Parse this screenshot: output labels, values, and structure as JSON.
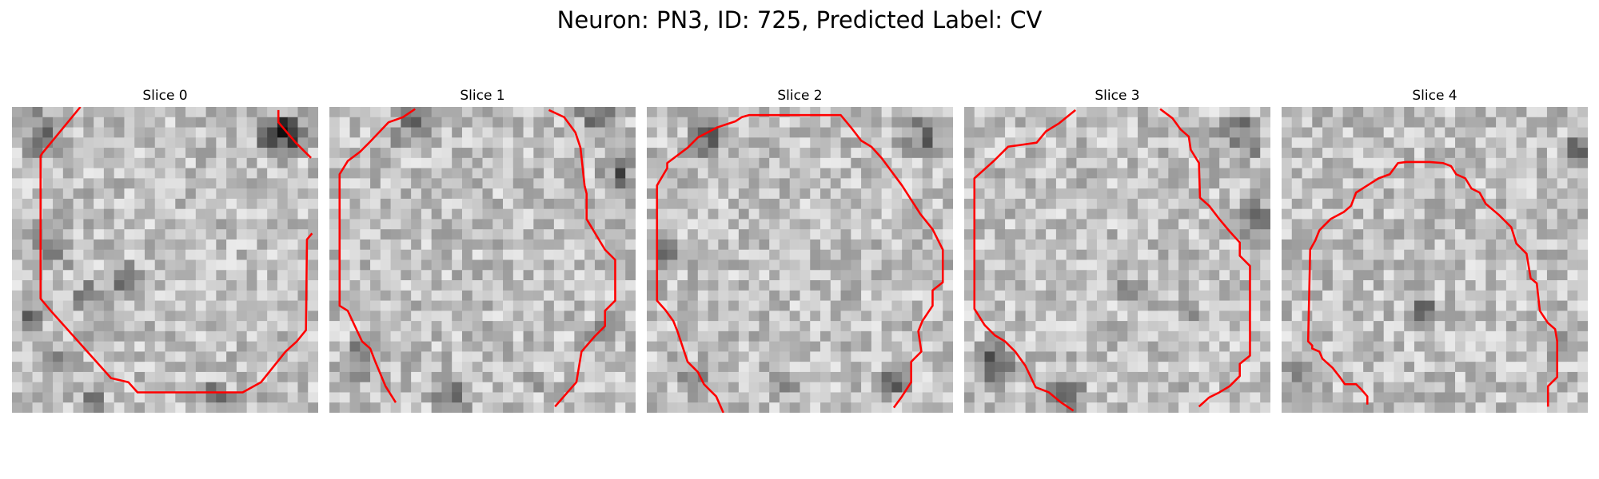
{
  "figure": {
    "title": "Neuron: PN3, ID: 725, Predicted Label: CV"
  },
  "contour_color": "#ff0000",
  "grid_size": 30,
  "slices": [
    {
      "title": "Slice 0",
      "seed": 11,
      "contour": [
        [
          6.7,
          0
        ],
        [
          3,
          4.5
        ],
        [
          2.8,
          4.8
        ],
        [
          2.8,
          18.8
        ],
        [
          3.8,
          20
        ],
        [
          9.7,
          26.6
        ],
        [
          11.4,
          27
        ],
        [
          12.3,
          28
        ],
        [
          22.6,
          28
        ],
        [
          24.4,
          27
        ],
        [
          26.8,
          24
        ],
        [
          27.9,
          23
        ],
        [
          28.8,
          21.9
        ],
        [
          28.9,
          13
        ],
        [
          29.4,
          12.4
        ]
      ],
      "contour2": [
        [
          26.1,
          0.3
        ],
        [
          26.1,
          1.5
        ],
        [
          27.8,
          3.5
        ],
        [
          29.3,
          5
        ]
      ],
      "dark_features": [
        [
          3,
          2.7,
          3.2
        ],
        [
          27,
          2.5,
          3
        ],
        [
          26,
          3,
          2.8
        ],
        [
          11,
          17,
          2.2
        ],
        [
          7.6,
          18.7,
          1.8
        ],
        [
          4,
          14,
          2.5
        ],
        [
          2,
          20,
          2
        ],
        [
          4,
          25,
          2
        ],
        [
          20,
          28.5,
          2
        ],
        [
          8,
          29,
          1.5
        ]
      ]
    },
    {
      "title": "Slice 1",
      "seed": 23,
      "contour": [
        [
          8.4,
          0.2
        ],
        [
          7.2,
          1
        ],
        [
          5.8,
          1.5
        ],
        [
          4,
          3.4
        ],
        [
          3,
          4.4
        ],
        [
          1.8,
          5.3
        ],
        [
          1,
          6.6
        ],
        [
          1,
          19.5
        ],
        [
          1.8,
          20
        ],
        [
          2.5,
          21.5
        ],
        [
          3.2,
          23
        ],
        [
          4,
          23.7
        ],
        [
          4.5,
          25
        ],
        [
          5.5,
          27.4
        ],
        [
          6.5,
          29
        ]
      ],
      "contour2": [
        [
          21.5,
          0.3
        ],
        [
          23,
          1
        ],
        [
          24.1,
          2.5
        ],
        [
          24.6,
          4
        ],
        [
          25,
          7.7
        ],
        [
          25.2,
          8.5
        ],
        [
          25.2,
          11
        ],
        [
          27,
          14
        ],
        [
          28,
          15
        ],
        [
          28,
          19
        ],
        [
          27,
          20
        ],
        [
          27,
          21.5
        ],
        [
          26,
          22.5
        ],
        [
          24.7,
          24
        ],
        [
          24.2,
          27
        ],
        [
          22.1,
          29.4
        ]
      ],
      "dark_features": [
        [
          8,
          2,
          2.5
        ],
        [
          26,
          0.5,
          2.5
        ],
        [
          28.5,
          7,
          2.5
        ],
        [
          3,
          25,
          2.5
        ],
        [
          12,
          28,
          2.5
        ],
        [
          20,
          27,
          1.5
        ],
        [
          27,
          22,
          2
        ]
      ]
    },
    {
      "title": "Slice 2",
      "seed": 37,
      "contour": [
        [
          7.5,
          30
        ],
        [
          6.8,
          28.4
        ],
        [
          5.6,
          27.2
        ],
        [
          5,
          26
        ],
        [
          4,
          25
        ],
        [
          3,
          22
        ],
        [
          2.6,
          21
        ],
        [
          1.8,
          19.9
        ],
        [
          1,
          19
        ],
        [
          1,
          7.7
        ],
        [
          2,
          6
        ],
        [
          2,
          5.5
        ],
        [
          4,
          4
        ],
        [
          5,
          3
        ],
        [
          6.9,
          2
        ],
        [
          8.7,
          1.4
        ],
        [
          9.3,
          1
        ],
        [
          10,
          0.8
        ],
        [
          19,
          0.8
        ],
        [
          20,
          2
        ],
        [
          21,
          3.3
        ],
        [
          22,
          3.9
        ],
        [
          23,
          5
        ],
        [
          25,
          7.7
        ],
        [
          26.8,
          10.5
        ],
        [
          28,
          12
        ],
        [
          29,
          14
        ],
        [
          29,
          17.2
        ],
        [
          28,
          18
        ],
        [
          28,
          19.5
        ],
        [
          27,
          21
        ],
        [
          26.6,
          22
        ],
        [
          26.9,
          24
        ],
        [
          25.9,
          25
        ],
        [
          25.9,
          27
        ],
        [
          25,
          28.4
        ],
        [
          24.2,
          29.5
        ]
      ],
      "dark_features": [
        [
          27,
          2.5,
          3
        ],
        [
          6,
          3,
          2.5
        ],
        [
          2,
          14,
          2
        ],
        [
          5,
          27,
          2.5
        ],
        [
          13,
          27,
          2
        ],
        [
          24,
          27,
          2
        ],
        [
          20,
          19,
          1.5
        ]
      ]
    },
    {
      "title": "Slice 3",
      "seed": 51,
      "contour": [
        [
          10.9,
          0.3
        ],
        [
          9.3,
          1.6
        ],
        [
          8,
          2.4
        ],
        [
          7.1,
          3.5
        ],
        [
          4.3,
          3.9
        ],
        [
          3,
          5.2
        ],
        [
          1,
          7
        ],
        [
          1,
          19.8
        ],
        [
          2,
          21.4
        ],
        [
          3,
          22.4
        ],
        [
          4,
          23
        ],
        [
          5,
          24
        ],
        [
          6,
          25.4
        ],
        [
          7,
          27.5
        ],
        [
          8.3,
          28
        ],
        [
          9.5,
          29
        ],
        [
          10.7,
          29.8
        ]
      ],
      "contour2": [
        [
          19.2,
          0.2
        ],
        [
          20.4,
          1.1
        ],
        [
          21.2,
          2.2
        ],
        [
          22,
          2.9
        ],
        [
          22.2,
          4.2
        ],
        [
          23,
          5.5
        ],
        [
          23.1,
          8.9
        ],
        [
          24,
          9.7
        ],
        [
          25,
          11
        ],
        [
          26,
          12.2
        ],
        [
          27,
          13.3
        ],
        [
          27,
          14.6
        ],
        [
          28,
          15.6
        ],
        [
          28,
          24.4
        ],
        [
          27,
          25.2
        ],
        [
          27,
          26.4
        ],
        [
          26,
          27.4
        ],
        [
          25,
          28
        ],
        [
          24,
          28.5
        ],
        [
          23,
          29.4
        ]
      ],
      "dark_features": [
        [
          27,
          3,
          3
        ],
        [
          29,
          11,
          2.5
        ],
        [
          3,
          25,
          3
        ],
        [
          10,
          28,
          2.5
        ],
        [
          16,
          18,
          1.8
        ],
        [
          22,
          20,
          1.5
        ]
      ]
    },
    {
      "title": "Slice 4",
      "seed": 67,
      "contour": [
        [
          8.4,
          29.2
        ],
        [
          8.4,
          28.4
        ],
        [
          7.8,
          27.7
        ],
        [
          7.3,
          27.2
        ],
        [
          6.2,
          27.2
        ],
        [
          5.7,
          26.5
        ],
        [
          5,
          25.6
        ],
        [
          4,
          24.7
        ],
        [
          3.7,
          24
        ],
        [
          3,
          23.7
        ],
        [
          3,
          23.4
        ],
        [
          2.6,
          23
        ],
        [
          2.8,
          14
        ],
        [
          3.3,
          13.1
        ],
        [
          3.7,
          12.1
        ],
        [
          4.8,
          11
        ],
        [
          6.1,
          10.3
        ],
        [
          6.8,
          9.7
        ],
        [
          7.3,
          8.4
        ],
        [
          8.4,
          7.7
        ],
        [
          9.5,
          7
        ],
        [
          10.6,
          6.6
        ],
        [
          11.4,
          5.5
        ],
        [
          12.2,
          5.4
        ],
        [
          13.2,
          5.4
        ],
        [
          14.5,
          5.4
        ],
        [
          15.8,
          5.5
        ],
        [
          16.6,
          5.8
        ],
        [
          17.1,
          6.6
        ],
        [
          18,
          7
        ],
        [
          18.6,
          8
        ],
        [
          19.4,
          8.4
        ],
        [
          20,
          9.5
        ],
        [
          21.3,
          10.6
        ],
        [
          22.5,
          11.8
        ],
        [
          23,
          13.4
        ],
        [
          24,
          14.4
        ],
        [
          24.4,
          16.8
        ],
        [
          25,
          17.3
        ],
        [
          25.3,
          20
        ],
        [
          26.1,
          21.2
        ],
        [
          26.8,
          21.8
        ],
        [
          27,
          23
        ],
        [
          27,
          26.5
        ],
        [
          26.1,
          27.4
        ],
        [
          26.1,
          29.4
        ]
      ],
      "dark_features": [
        [
          1.4,
          25.5,
          1.4
        ],
        [
          29,
          4,
          2
        ],
        [
          27,
          23,
          1.8
        ],
        [
          14,
          20,
          1.5
        ]
      ]
    }
  ]
}
